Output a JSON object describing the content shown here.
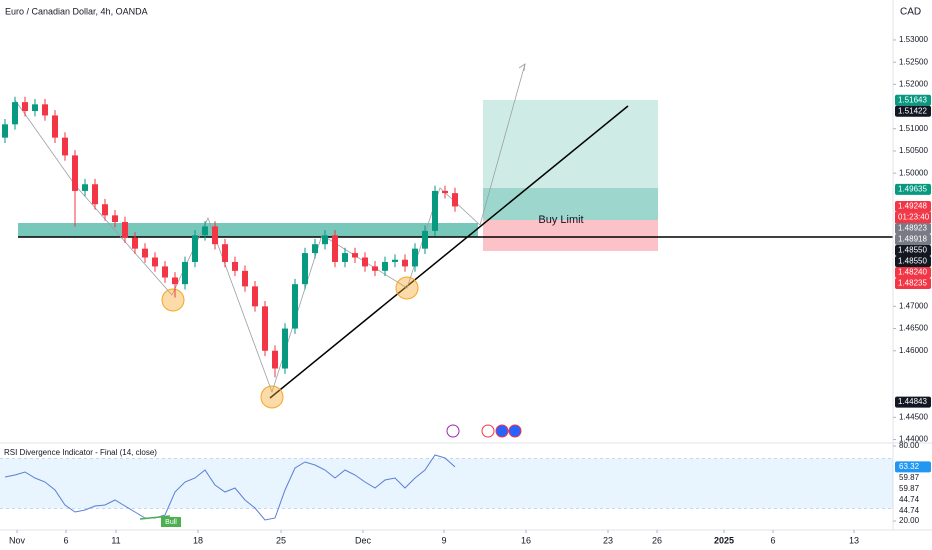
{
  "chart_data": [
    {
      "type": "candlestick",
      "title": "Euro / Canadian Dollar, 4h, OANDA",
      "unit": "CAD",
      "annotations": [
        "Buy Limit"
      ],
      "countdown": "01:23:40",
      "up_color": "#089981",
      "down_color": "#f23645",
      "candles": [
        [
          1.508,
          1.5122,
          1.5068,
          1.511
        ],
        [
          1.511,
          1.5172,
          1.5098,
          1.516
        ],
        [
          1.516,
          1.5172,
          1.5128,
          1.514
        ],
        [
          1.514,
          1.5167,
          1.5128,
          1.5155
        ],
        [
          1.5155,
          1.5167,
          1.5118,
          1.513
        ],
        [
          1.513,
          1.5142,
          1.5068,
          1.508
        ],
        [
          1.508,
          1.5092,
          1.5028,
          1.504
        ],
        [
          1.504,
          1.5052,
          1.488,
          1.496
        ],
        [
          1.496,
          1.4987,
          1.4948,
          1.4975
        ],
        [
          1.4975,
          1.4987,
          1.4918,
          1.493
        ],
        [
          1.493,
          1.4942,
          1.4893,
          1.4905
        ],
        [
          1.4905,
          1.4917,
          1.4878,
          1.489
        ],
        [
          1.489,
          1.4902,
          1.4843,
          1.4855
        ],
        [
          1.4855,
          1.4867,
          1.4818,
          1.483
        ],
        [
          1.483,
          1.4842,
          1.4798,
          1.481
        ],
        [
          1.481,
          1.4822,
          1.4778,
          1.479
        ],
        [
          1.479,
          1.4802,
          1.4753,
          1.4765
        ],
        [
          1.4765,
          1.4777,
          1.472,
          1.475
        ],
        [
          1.475,
          1.4812,
          1.4738,
          1.48
        ],
        [
          1.48,
          1.4872,
          1.4788,
          1.486
        ],
        [
          1.486,
          1.4892,
          1.4848,
          1.488
        ],
        [
          1.488,
          1.4892,
          1.4828,
          1.484
        ],
        [
          1.484,
          1.4852,
          1.4788,
          1.48
        ],
        [
          1.48,
          1.4812,
          1.4768,
          1.478
        ],
        [
          1.478,
          1.4792,
          1.4733,
          1.4745
        ],
        [
          1.4745,
          1.4757,
          1.4688,
          1.47
        ],
        [
          1.47,
          1.4712,
          1.4588,
          1.46
        ],
        [
          1.46,
          1.4612,
          1.454,
          1.456
        ],
        [
          1.456,
          1.4662,
          1.4548,
          1.465
        ],
        [
          1.465,
          1.4762,
          1.4638,
          1.475
        ],
        [
          1.475,
          1.4832,
          1.4738,
          1.482
        ],
        [
          1.482,
          1.4852,
          1.4808,
          1.484
        ],
        [
          1.484,
          1.4872,
          1.4828,
          1.486
        ],
        [
          1.486,
          1.4872,
          1.4788,
          1.48
        ],
        [
          1.48,
          1.4832,
          1.4788,
          1.482
        ],
        [
          1.482,
          1.4832,
          1.4798,
          1.481
        ],
        [
          1.481,
          1.4822,
          1.4778,
          1.479
        ],
        [
          1.479,
          1.4802,
          1.4768,
          1.478
        ],
        [
          1.478,
          1.4812,
          1.4768,
          1.48
        ],
        [
          1.48,
          1.4817,
          1.4788,
          1.4805
        ],
        [
          1.4805,
          1.4817,
          1.4778,
          1.479
        ],
        [
          1.479,
          1.4842,
          1.4778,
          1.483
        ],
        [
          1.483,
          1.4882,
          1.4818,
          1.487
        ],
        [
          1.487,
          1.4972,
          1.4858,
          1.496
        ],
        [
          1.496,
          1.4972,
          1.4943,
          1.4955
        ],
        [
          1.4955,
          1.4967,
          1.4913,
          1.4925
        ]
      ],
      "xlim": [
        -0.5,
        88.8
      ],
      "xticks": [
        {
          "value": 1.2,
          "label": "Nov"
        },
        {
          "value": 6.1,
          "label": "6"
        },
        {
          "value": 11.1,
          "label": "11"
        },
        {
          "value": 19.3,
          "label": "18"
        },
        {
          "value": 27.6,
          "label": "25"
        },
        {
          "value": 35.8,
          "label": "Dec"
        },
        {
          "value": 43.9,
          "label": "9"
        },
        {
          "value": 52.1,
          "label": "16"
        },
        {
          "value": 60.3,
          "label": "23"
        },
        {
          "value": 65.2,
          "label": "26"
        },
        {
          "value": 71.9,
          "label": "2025"
        },
        {
          "value": 76.8,
          "label": "6"
        },
        {
          "value": 84.9,
          "label": "13"
        }
      ],
      "ylim": [
        1.4399,
        1.539
      ],
      "yticks": [
        {
          "value": 1.53,
          "label": "1.53000"
        },
        {
          "value": 1.525,
          "label": "1.52500"
        },
        {
          "value": 1.52,
          "label": "1.52000"
        },
        {
          "value": 1.51,
          "label": "1.51000"
        },
        {
          "value": 1.505,
          "label": "1.50500"
        },
        {
          "value": 1.5,
          "label": "1.50000"
        },
        {
          "value": 1.47,
          "label": "1.47000"
        },
        {
          "value": 1.465,
          "label": "1.46500"
        },
        {
          "value": 1.46,
          "label": "1.46000"
        },
        {
          "value": 1.445,
          "label": "1.44500"
        },
        {
          "value": 1.44,
          "label": "1.44000"
        }
      ],
      "price_labels": [
        {
          "value": 1.51643,
          "label": "1.51643",
          "color": "#089981"
        },
        {
          "value": 1.51422,
          "label": "1.51422",
          "color": "#131722"
        },
        {
          "value": 1.49635,
          "label": "1.49635",
          "color": "#089981"
        },
        {
          "value": 1.49248,
          "label": "1.49248",
          "color": "#f23645"
        },
        {
          "value": 1.48923,
          "label": "1.48923",
          "color": "#787b86"
        },
        {
          "value": 1.48918,
          "label": "1.48918",
          "color": "#787b86"
        },
        {
          "value": 1.4855,
          "label": "1.48550",
          "color": "#131722"
        },
        {
          "value": 1.4855,
          "label": "1.48550",
          "color": "#131722"
        },
        {
          "value": 1.4824,
          "label": "1.48240",
          "color": "#f23645"
        },
        {
          "value": 1.48235,
          "label": "1.48235",
          "color": "#f23645"
        },
        {
          "value": 1.44843,
          "label": "1.44843",
          "color": "#131722"
        }
      ]
    },
    {
      "type": "line",
      "title": "RSI Divergence Indicator - Final (14, close)",
      "color": "#5b7fd6",
      "values": [
        55.2,
        56.8,
        59.2,
        54.4,
        51.2,
        44.8,
        32.8,
        27.2,
        28.8,
        32,
        32.8,
        36.8,
        32,
        27.2,
        22.4,
        22.4,
        24.8,
        43.2,
        51.2,
        54.4,
        60.8,
        48.8,
        43.2,
        46.4,
        36.8,
        30.4,
        20.8,
        22.4,
        44.8,
        62.4,
        67.2,
        64.8,
        60.8,
        54.4,
        60.8,
        56.8,
        51.2,
        46.4,
        52.8,
        54.4,
        46.4,
        54.4,
        60.8,
        72.8,
        70.4,
        63.32
      ],
      "ylim": [
        12.8,
        80.8
      ],
      "levels": [
        30,
        70
      ],
      "yticks": [
        {
          "value": 80,
          "label": "80.00"
        },
        {
          "value": 20,
          "label": "20.00"
        }
      ],
      "badges": [
        59.87,
        59.87,
        44.74,
        44.74
      ],
      "annotations": [
        "Bull"
      ]
    }
  ]
}
